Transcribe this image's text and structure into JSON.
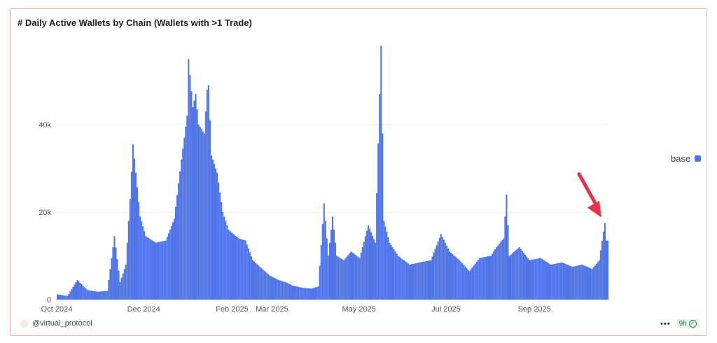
{
  "header": {
    "title": "# Daily Active Wallets by Chain (Wallets with >1 Trade)"
  },
  "legend": {
    "label": "base",
    "color": "#4f74e8"
  },
  "footer": {
    "handle": "@virtual_protocol",
    "more": "•••",
    "freshness": "9h",
    "check": "✓"
  },
  "annotation": {
    "type": "arrow",
    "color": "#e8324a"
  },
  "chart_data": {
    "type": "bar",
    "title": "# Daily Active Wallets by Chain (Wallets with >1 Trade)",
    "series": [
      {
        "name": "base",
        "color": "#4f74e8",
        "points": [
          [
            "2024-10-01",
            1200
          ],
          [
            "2024-10-08",
            800
          ],
          [
            "2024-10-15",
            4500
          ],
          [
            "2024-10-22",
            2200
          ],
          [
            "2024-10-29",
            1800
          ],
          [
            "2024-11-05",
            2000
          ],
          [
            "2024-11-10",
            14500
          ],
          [
            "2024-11-14",
            4000
          ],
          [
            "2024-11-18",
            8000
          ],
          [
            "2024-11-21",
            23000
          ],
          [
            "2024-11-23",
            35500
          ],
          [
            "2024-11-25",
            29000
          ],
          [
            "2024-11-28",
            19000
          ],
          [
            "2024-12-02",
            14500
          ],
          [
            "2024-12-09",
            13000
          ],
          [
            "2024-12-16",
            13500
          ],
          [
            "2024-12-22",
            18500
          ],
          [
            "2024-12-27",
            32000
          ],
          [
            "2024-12-31",
            42000
          ],
          [
            "2025-01-01",
            55000
          ],
          [
            "2025-01-04",
            44000
          ],
          [
            "2025-01-06",
            47000
          ],
          [
            "2025-01-08",
            40000
          ],
          [
            "2025-01-12",
            38000
          ],
          [
            "2025-01-14",
            48000
          ],
          [
            "2025-01-15",
            49000
          ],
          [
            "2025-01-17",
            33000
          ],
          [
            "2025-01-21",
            29000
          ],
          [
            "2025-01-25",
            20000
          ],
          [
            "2025-01-29",
            16000
          ],
          [
            "2025-02-05",
            14000
          ],
          [
            "2025-02-10",
            13500
          ],
          [
            "2025-02-15",
            9000
          ],
          [
            "2025-02-20",
            7500
          ],
          [
            "2025-02-27",
            5500
          ],
          [
            "2025-03-05",
            4500
          ],
          [
            "2025-03-10",
            4000
          ],
          [
            "2025-03-15",
            3200
          ],
          [
            "2025-03-22",
            2700
          ],
          [
            "2025-03-28",
            2500
          ],
          [
            "2025-04-02",
            3000
          ],
          [
            "2025-04-06",
            22000
          ],
          [
            "2025-04-09",
            10000
          ],
          [
            "2025-04-12",
            19000
          ],
          [
            "2025-04-15",
            10000
          ],
          [
            "2025-04-20",
            9000
          ],
          [
            "2025-04-25",
            11000
          ],
          [
            "2025-05-01",
            9500
          ],
          [
            "2025-05-07",
            17000
          ],
          [
            "2025-05-12",
            13000
          ],
          [
            "2025-05-15",
            47000
          ],
          [
            "2025-05-16",
            58000
          ],
          [
            "2025-05-18",
            18000
          ],
          [
            "2025-05-22",
            13000
          ],
          [
            "2025-05-28",
            10000
          ],
          [
            "2025-06-05",
            8000
          ],
          [
            "2025-06-12",
            8500
          ],
          [
            "2025-06-20",
            9000
          ],
          [
            "2025-06-27",
            15000
          ],
          [
            "2025-07-03",
            11000
          ],
          [
            "2025-07-10",
            9000
          ],
          [
            "2025-07-17",
            6500
          ],
          [
            "2025-07-24",
            9500
          ],
          [
            "2025-08-01",
            10000
          ],
          [
            "2025-08-05",
            12000
          ],
          [
            "2025-08-10",
            14000
          ],
          [
            "2025-08-12",
            24000
          ],
          [
            "2025-08-14",
            10000
          ],
          [
            "2025-08-21",
            12000
          ],
          [
            "2025-08-28",
            9000
          ],
          [
            "2025-09-05",
            9500
          ],
          [
            "2025-09-12",
            8000
          ],
          [
            "2025-09-20",
            8500
          ],
          [
            "2025-09-27",
            7500
          ],
          [
            "2025-10-04",
            8000
          ],
          [
            "2025-10-11",
            7000
          ],
          [
            "2025-10-16",
            9000
          ],
          [
            "2025-10-18",
            13500
          ],
          [
            "2025-10-20",
            17500
          ],
          [
            "2025-10-21",
            13500
          ]
        ]
      }
    ],
    "x_ticks": [
      "Oct 2024",
      "Dec 2024",
      "Feb 2025",
      "Mar 2025",
      "May 2025",
      "Jul 2025",
      "Sep 2025"
    ],
    "x_tick_dates": [
      "2024-10-01",
      "2024-12-01",
      "2025-02-01",
      "2025-03-01",
      "2025-05-01",
      "2025-07-01",
      "2025-09-01"
    ],
    "y_ticks": [
      "0",
      "20k",
      "40k"
    ],
    "y_tick_values": [
      0,
      20000,
      40000
    ],
    "x_range": [
      "2024-10-01",
      "2025-10-22"
    ],
    "ylim": [
      0,
      60000
    ],
    "grid": true,
    "legend_position": "right"
  }
}
